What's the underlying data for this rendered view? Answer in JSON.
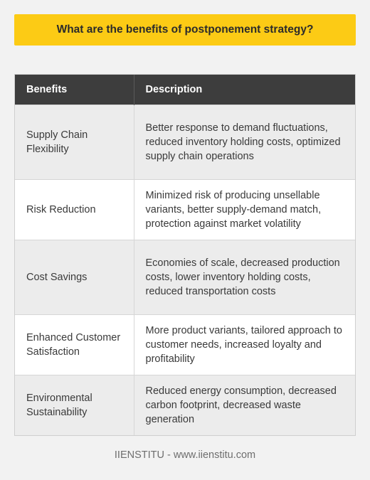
{
  "title": "What are the benefits of postponement strategy?",
  "table": {
    "headers": [
      "Benefits",
      "Description"
    ],
    "rows": [
      {
        "benefit": "Supply Chain Flexibility",
        "description": "Better response to demand fluctuations, reduced inventory holding costs, optimized supply chain operations"
      },
      {
        "benefit": "Risk Reduction",
        "description": "Minimized risk of producing unsellable variants, better supply-demand match, protection against market volatility"
      },
      {
        "benefit": "Cost Savings",
        "description": "Economies of scale, decreased production costs, lower inventory holding costs, reduced transportation costs"
      },
      {
        "benefit": "Enhanced Customer Satisfaction",
        "description": "More product variants, tailored approach to customer needs, increased loyalty and profitability"
      },
      {
        "benefit": "Environmental Sustainability",
        "description": "Reduced energy consumption, decreased carbon footprint, decreased waste generation"
      }
    ]
  },
  "footer": "IIENSTITU - www.iienstitu.com",
  "colors": {
    "accent": "#fccb15",
    "header_bg": "#3d3d3d",
    "page_bg": "#f2f2f2"
  }
}
